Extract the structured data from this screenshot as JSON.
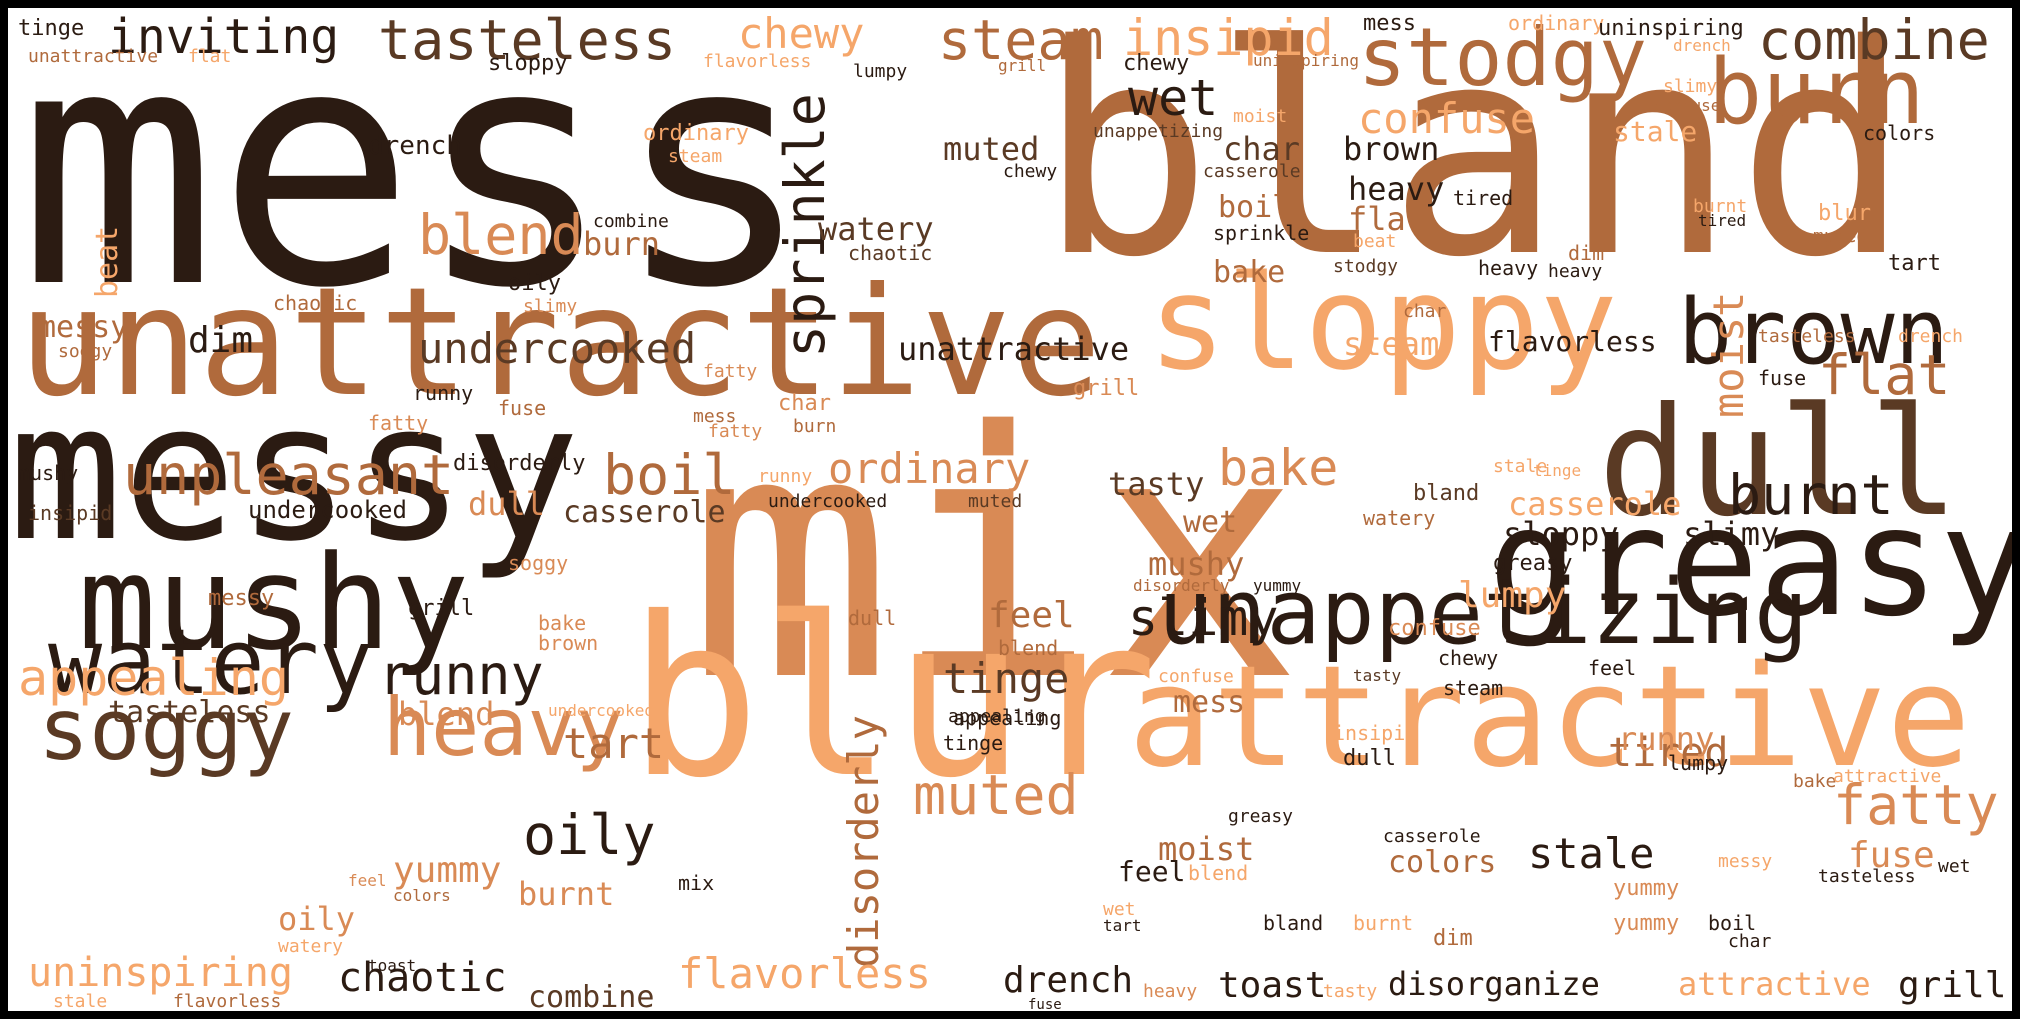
{
  "palette": {
    "dark": "#2b1b12",
    "brown": "#5a3a24",
    "mid": "#b06a3c",
    "tan": "#d98a55",
    "light": "#f5a66a",
    "pale": "#f7c08e"
  },
  "words": [
    "mess",
    "bland",
    "mix",
    "unattractive",
    "messy",
    "blur",
    "attractive",
    "greasy",
    "dull",
    "sloppy",
    "mushy",
    "stodgy",
    "burn",
    "brown",
    "combine",
    "watery",
    "soggy",
    "heavy",
    "unappetizing",
    "tasteless",
    "inviting",
    "steam",
    "insipid",
    "chewy",
    "sprinkle",
    "unpleasant",
    "blend",
    "appealing",
    "undercooked",
    "runny",
    "oily",
    "burnt",
    "boil",
    "bake",
    "ordinary",
    "confuse",
    "wet",
    "muted",
    "flat",
    "moist",
    "disorderly",
    "tinge",
    "slimy",
    "tart",
    "fatty",
    "uninspiring",
    "chaotic",
    "flavorless",
    "drench",
    "toast",
    "disorganize",
    "grill",
    "stale",
    "fuse",
    "lumpy",
    "yummy",
    "tired",
    "colors",
    "casserole",
    "feel",
    "char",
    "beat",
    "dim",
    "tasty"
  ]
}
